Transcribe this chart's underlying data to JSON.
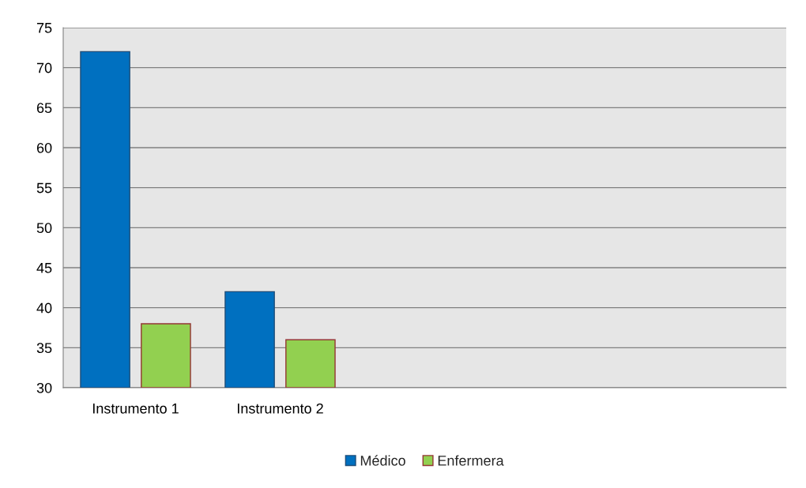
{
  "chart_data": {
    "type": "bar",
    "categories": [
      "Instrumento 1",
      "Instrumento 2",
      null,
      null,
      null
    ],
    "series": [
      {
        "name": "Médico",
        "color": "#0070c0",
        "values": [
          72,
          42,
          null,
          null,
          null
        ]
      },
      {
        "name": "Enfermera",
        "color": "#92d050",
        "values": [
          38,
          36,
          null,
          null,
          null
        ]
      }
    ],
    "ylim": [
      30,
      75
    ],
    "yticks": [
      30,
      35,
      40,
      45,
      50,
      55,
      60,
      65,
      70,
      75
    ],
    "grid": "y",
    "legend": "bottom"
  }
}
